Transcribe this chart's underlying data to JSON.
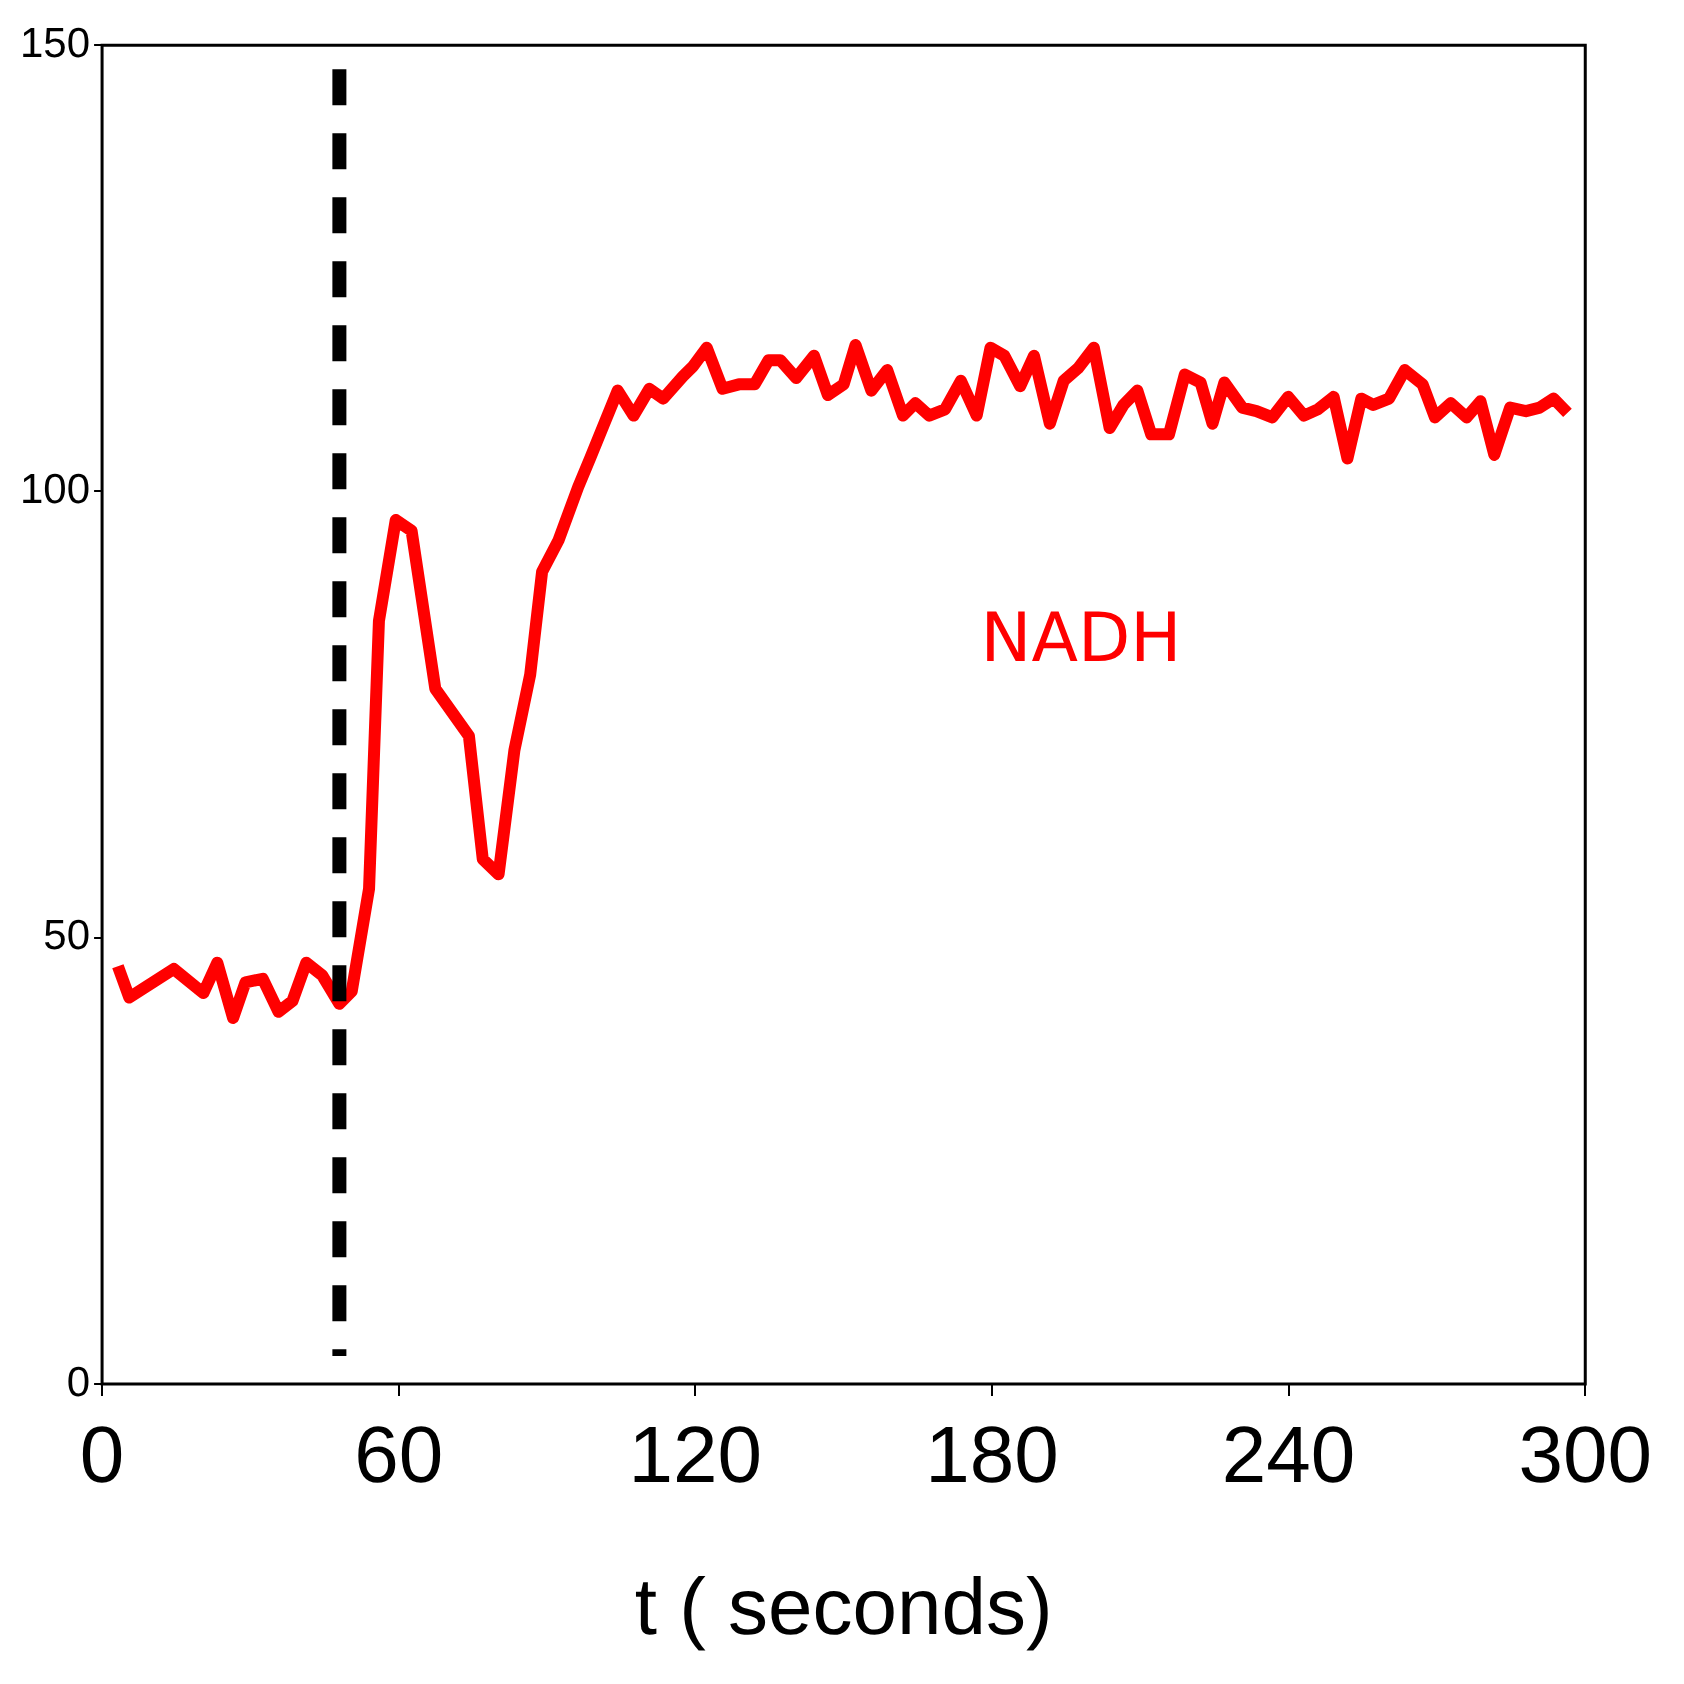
{
  "chart_data": {
    "type": "line",
    "xlabel": "t ( seconds)",
    "x": [
      3.2,
      5.5,
      14.5,
      20.5,
      23.3,
      26.5,
      29,
      32.5,
      35.7,
      38.5,
      41.3,
      44.5,
      48,
      50.5,
      54,
      56,
      59.4,
      62.6,
      67.4,
      74.2,
      77,
      80.2,
      83.4,
      86.6,
      89,
      92.3,
      96.3,
      98.7,
      101.5,
      104.3,
      107.5,
      110.7,
      113.5,
      117.5,
      119.5,
      122.3,
      125.5,
      128.8,
      132,
      134.8,
      137.2,
      140.4,
      144,
      146.8,
      150,
      152.4,
      155.6,
      158.8,
      162,
      164.5,
      167.3,
      170.5,
      173.7,
      176.9,
      179.7,
      182.5,
      185.7,
      188.5,
      191.7,
      194.5,
      197.4,
      200.6,
      203.8,
      206.6,
      209.4,
      212.2,
      215.8,
      219,
      222.2,
      224.6,
      227,
      230.6,
      233.5,
      236.7,
      239.9,
      243.1,
      245.9,
      249.1,
      251.9,
      254.7,
      257.1,
      260.3,
      263.5,
      267.1,
      269.6,
      272.8,
      276,
      278.8,
      281.6,
      284.8,
      288,
      290.8,
      293.6,
      296.4
    ],
    "series": [
      {
        "name": "NADH",
        "color": "#ff0000",
        "values": [
          46.8,
          43.3,
          46.5,
          43.8,
          47.2,
          41,
          45,
          45.4,
          41.7,
          42.9,
          47.2,
          45.8,
          42.6,
          44,
          55.5,
          85.5,
          96.8,
          95.6,
          77.9,
          72.6,
          58.8,
          57.1,
          71,
          79.5,
          91,
          94.5,
          100.5,
          103.7,
          107.5,
          111.3,
          108.5,
          111.5,
          110.4,
          112.9,
          114,
          116.1,
          111.5,
          112,
          112,
          114.7,
          114.7,
          112.7,
          115.2,
          110.8,
          112,
          116.4,
          111.3,
          113.6,
          108.5,
          109.9,
          108.5,
          109.2,
          112.4,
          108.5,
          116.1,
          115.2,
          111.8,
          115.2,
          107.6,
          112.4,
          113.8,
          116.1,
          107.1,
          109.7,
          111.3,
          106.4,
          106.4,
          113.1,
          112.2,
          107.6,
          112.2,
          109.4,
          109,
          108.3,
          110.6,
          108.5,
          109.2,
          110.6,
          103.7,
          110.4,
          109.7,
          110.4,
          113.6,
          112,
          108.3,
          109.9,
          108.3,
          110.1,
          104.1,
          109.4,
          109,
          109.4,
          110.4,
          108.8
        ]
      }
    ],
    "xlim": [
      0,
      300
    ],
    "xticks": [
      0,
      60,
      120,
      180,
      240,
      300
    ],
    "ylim": [
      0,
      150
    ],
    "yticks": [
      0,
      50,
      100,
      150
    ],
    "grid": false,
    "legend": false,
    "marker": "none",
    "line_style": "solid",
    "ref_lines": [
      {
        "axis": "x",
        "value": 48,
        "color": "#000000",
        "line_style": "dashed"
      }
    ]
  }
}
